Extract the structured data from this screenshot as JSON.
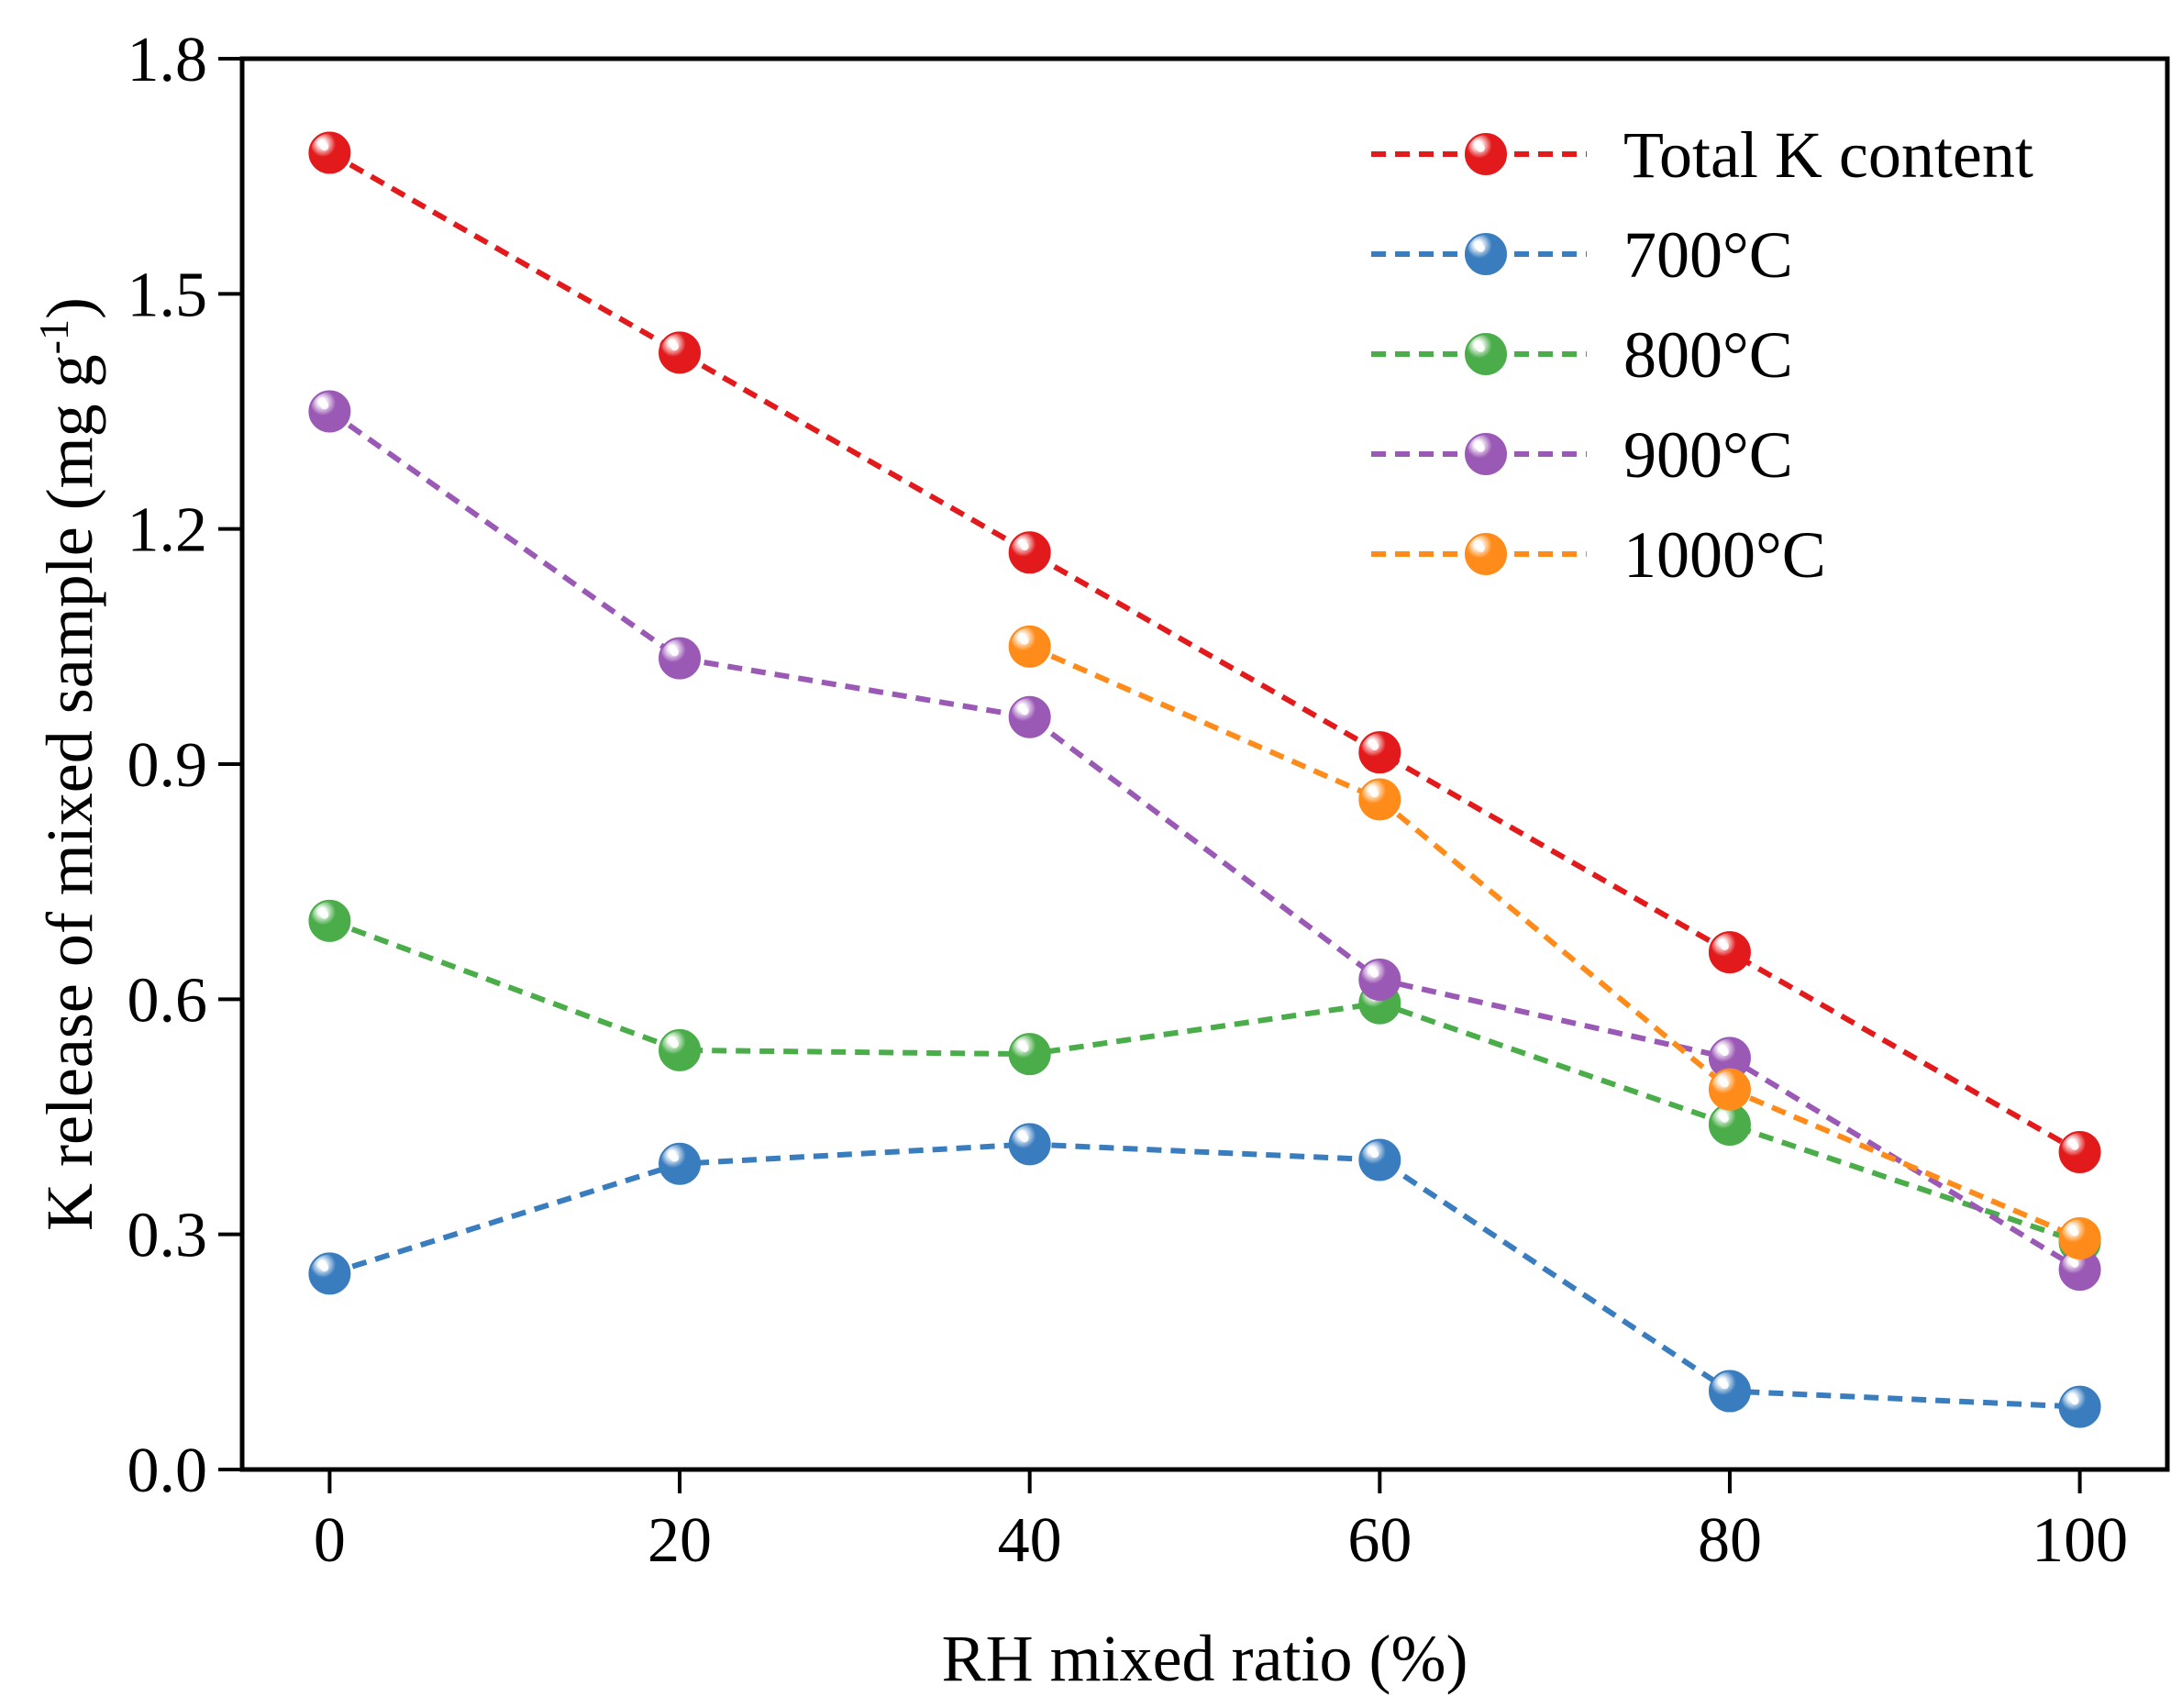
{
  "chart_data": {
    "type": "line",
    "title": "",
    "xlabel": "RH mixed ratio (%)",
    "ylabel": "K release of mixed sample (mg g⁻¹)",
    "ylabel_parts": {
      "main": "K release of mixed sample (mg g",
      "sup": "-1",
      "close": ")"
    },
    "xlim": [
      -5,
      105
    ],
    "ylim": [
      0.0,
      1.8
    ],
    "xticks": [
      0,
      20,
      40,
      60,
      80,
      100
    ],
    "xtick_labels": [
      "0",
      "20",
      "40",
      "60",
      "80",
      "100"
    ],
    "yticks": [
      0.0,
      0.3,
      0.6,
      0.9,
      1.2,
      1.5,
      1.8
    ],
    "ytick_labels": [
      "0.0",
      "0.3",
      "0.6",
      "0.9",
      "1.2",
      "1.5",
      "1.8"
    ],
    "grid": false,
    "legend_position": "top-right",
    "series": [
      {
        "name": "Total K content",
        "color": "#e31a1c",
        "x": [
          0,
          20,
          40,
          60,
          80,
          100
        ],
        "values": [
          1.68,
          1.425,
          1.17,
          0.915,
          0.66,
          0.405
        ]
      },
      {
        "name": "700°C",
        "color": "#3a7dbf",
        "x": [
          0,
          20,
          40,
          60,
          80,
          100
        ],
        "values": [
          0.25,
          0.39,
          0.415,
          0.395,
          0.1,
          0.08
        ]
      },
      {
        "name": "800°C",
        "color": "#4aad4a",
        "x": [
          0,
          20,
          40,
          60,
          80,
          100
        ],
        "values": [
          0.7,
          0.535,
          0.53,
          0.595,
          0.44,
          0.29
        ]
      },
      {
        "name": "900°C",
        "color": "#9b59b6",
        "x": [
          0,
          20,
          40,
          60,
          80,
          100
        ],
        "values": [
          1.35,
          1.035,
          0.96,
          0.625,
          0.525,
          0.255
        ]
      },
      {
        "name": "1000°C",
        "color": "#ff8c1a",
        "x": [
          40,
          60,
          80,
          100
        ],
        "values": [
          1.05,
          0.855,
          0.485,
          0.295
        ]
      }
    ]
  }
}
